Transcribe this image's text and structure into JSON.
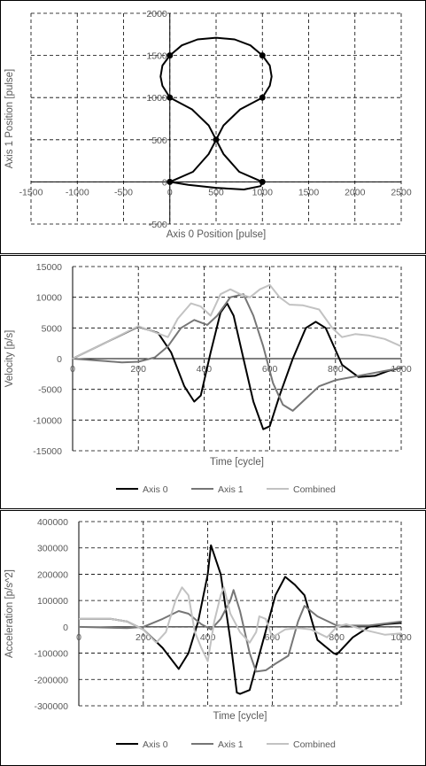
{
  "chart_data": [
    {
      "type": "scatter",
      "xlabel": "Axis 0 Position [pulse]",
      "ylabel": "Axis 1 Position [pulse]",
      "xlim": [
        -1500,
        2500
      ],
      "ylim": [
        -500,
        2000
      ],
      "xticks": [
        "-1500",
        "-1000",
        "-500",
        "0",
        "500",
        "1000",
        "1500",
        "2000",
        "2500"
      ],
      "yticks": [
        "-500",
        "0",
        "500",
        "1000",
        "1500",
        "2000"
      ],
      "grid": true,
      "legend": "none",
      "color": "#000000",
      "curve": [
        [
          0,
          0
        ],
        [
          250,
          120
        ],
        [
          420,
          330
        ],
        [
          500,
          500
        ],
        [
          580,
          670
        ],
        [
          760,
          860
        ],
        [
          1000,
          1000
        ],
        [
          1080,
          1140
        ],
        [
          1100,
          1250
        ],
        [
          1080,
          1380
        ],
        [
          1000,
          1500
        ],
        [
          870,
          1620
        ],
        [
          700,
          1690
        ],
        [
          500,
          1710
        ],
        [
          300,
          1690
        ],
        [
          130,
          1620
        ],
        [
          0,
          1500
        ],
        [
          -80,
          1380
        ],
        [
          -100,
          1250
        ],
        [
          -80,
          1140
        ],
        [
          0,
          1000
        ],
        [
          240,
          860
        ],
        [
          420,
          670
        ],
        [
          500,
          500
        ],
        [
          580,
          330
        ],
        [
          750,
          120
        ],
        [
          1000,
          0
        ],
        [
          980,
          -50
        ],
        [
          800,
          -90
        ],
        [
          500,
          -70
        ],
        [
          200,
          -35
        ],
        [
          0,
          0
        ]
      ],
      "markers": [
        [
          0,
          0
        ],
        [
          500,
          500
        ],
        [
          1000,
          1000
        ],
        [
          1000,
          1500
        ],
        [
          0,
          1500
        ],
        [
          0,
          1000
        ],
        [
          1000,
          0
        ]
      ]
    },
    {
      "type": "line",
      "xlabel": "Time [cycle]",
      "ylabel": "Velocity [p/s]",
      "xlim": [
        0,
        1000
      ],
      "ylim": [
        -15000,
        15000
      ],
      "xticks": [
        "0",
        "200",
        "400",
        "600",
        "800",
        "1000"
      ],
      "yticks": [
        "-15000",
        "-10000",
        "-5000",
        "0",
        "5000",
        "10000",
        "15000"
      ],
      "grid": true,
      "legend": "bottom",
      "series": [
        {
          "name": "Axis 0",
          "color": "#000000",
          "width": 2,
          "points": [
            [
              0,
              0
            ],
            [
              100,
              2600
            ],
            [
              200,
              5200
            ],
            [
              260,
              4200
            ],
            [
              300,
              1000
            ],
            [
              340,
              -4500
            ],
            [
              370,
              -7000
            ],
            [
              390,
              -6000
            ],
            [
              420,
              1000
            ],
            [
              450,
              7500
            ],
            [
              470,
              9000
            ],
            [
              490,
              7000
            ],
            [
              520,
              0
            ],
            [
              550,
              -7000
            ],
            [
              580,
              -11500
            ],
            [
              600,
              -11000
            ],
            [
              630,
              -6000
            ],
            [
              670,
              0
            ],
            [
              710,
              5000
            ],
            [
              740,
              6000
            ],
            [
              770,
              5000
            ],
            [
              820,
              -1000
            ],
            [
              870,
              -3000
            ],
            [
              920,
              -2800
            ],
            [
              960,
              -2000
            ],
            [
              1000,
              -1500
            ]
          ]
        },
        {
          "name": "Axis 1",
          "color": "#767676",
          "width": 2,
          "points": [
            [
              0,
              0
            ],
            [
              100,
              -400
            ],
            [
              150,
              -600
            ],
            [
              200,
              -500
            ],
            [
              250,
              200
            ],
            [
              290,
              2000
            ],
            [
              330,
              5000
            ],
            [
              370,
              6300
            ],
            [
              410,
              5500
            ],
            [
              440,
              7000
            ],
            [
              480,
              10000
            ],
            [
              520,
              10500
            ],
            [
              550,
              7000
            ],
            [
              580,
              2000
            ],
            [
              610,
              -4000
            ],
            [
              640,
              -7500
            ],
            [
              670,
              -8500
            ],
            [
              700,
              -7000
            ],
            [
              750,
              -4500
            ],
            [
              800,
              -3500
            ],
            [
              900,
              -2500
            ],
            [
              1000,
              -1500
            ]
          ]
        },
        {
          "name": "Combined",
          "color": "#c2c2c2",
          "width": 2,
          "points": [
            [
              0,
              0
            ],
            [
              100,
              2600
            ],
            [
              200,
              5300
            ],
            [
              250,
              4300
            ],
            [
              290,
              3500
            ],
            [
              320,
              6500
            ],
            [
              360,
              9000
            ],
            [
              390,
              8500
            ],
            [
              420,
              7000
            ],
            [
              450,
              10500
            ],
            [
              480,
              11300
            ],
            [
              510,
              10500
            ],
            [
              540,
              10000
            ],
            [
              570,
              11300
            ],
            [
              600,
              12000
            ],
            [
              630,
              10000
            ],
            [
              660,
              8800
            ],
            [
              700,
              8700
            ],
            [
              750,
              8000
            ],
            [
              790,
              5000
            ],
            [
              820,
              3500
            ],
            [
              860,
              4000
            ],
            [
              900,
              3800
            ],
            [
              950,
              3200
            ],
            [
              1000,
              2000
            ]
          ]
        }
      ]
    },
    {
      "type": "line",
      "xlabel": "Time [cycle]",
      "ylabel": "Acceleration [p/s^2]",
      "xlim": [
        0,
        1000
      ],
      "ylim": [
        -300000,
        400000
      ],
      "xticks": [
        "0",
        "200",
        "400",
        "600",
        "800",
        "1000"
      ],
      "yticks": [
        "-300000",
        "-200000",
        "-100000",
        "0",
        "100000",
        "200000",
        "300000",
        "400000"
      ],
      "grid": true,
      "legend": "bottom",
      "series": [
        {
          "name": "Axis 0",
          "color": "#000000",
          "width": 2,
          "points": [
            [
              0,
              30000
            ],
            [
              100,
              30000
            ],
            [
              150,
              20000
            ],
            [
              200,
              -10000
            ],
            [
              260,
              -80000
            ],
            [
              310,
              -160000
            ],
            [
              340,
              -100000
            ],
            [
              370,
              20000
            ],
            [
              400,
              200000
            ],
            [
              410,
              310000
            ],
            [
              440,
              200000
            ],
            [
              470,
              -50000
            ],
            [
              490,
              -250000
            ],
            [
              500,
              -255000
            ],
            [
              530,
              -240000
            ],
            [
              570,
              -60000
            ],
            [
              610,
              120000
            ],
            [
              640,
              190000
            ],
            [
              670,
              160000
            ],
            [
              700,
              120000
            ],
            [
              740,
              -50000
            ],
            [
              790,
              -100000
            ],
            [
              800,
              -105000
            ],
            [
              850,
              -40000
            ],
            [
              900,
              0
            ],
            [
              950,
              10000
            ],
            [
              1000,
              15000
            ]
          ]
        },
        {
          "name": "Axis 1",
          "color": "#767676",
          "width": 2,
          "points": [
            [
              0,
              0
            ],
            [
              150,
              -5000
            ],
            [
              200,
              0
            ],
            [
              260,
              30000
            ],
            [
              310,
              60000
            ],
            [
              340,
              50000
            ],
            [
              380,
              10000
            ],
            [
              410,
              -10000
            ],
            [
              440,
              30000
            ],
            [
              470,
              100000
            ],
            [
              480,
              140000
            ],
            [
              500,
              60000
            ],
            [
              530,
              -100000
            ],
            [
              550,
              -170000
            ],
            [
              580,
              -165000
            ],
            [
              610,
              -140000
            ],
            [
              650,
              -110000
            ],
            [
              680,
              20000
            ],
            [
              700,
              80000
            ],
            [
              740,
              40000
            ],
            [
              800,
              5000
            ],
            [
              900,
              5000
            ],
            [
              1000,
              20000
            ]
          ]
        },
        {
          "name": "Combined",
          "color": "#c2c2c2",
          "width": 2,
          "points": [
            [
              0,
              30000
            ],
            [
              100,
              30000
            ],
            [
              150,
              20000
            ],
            [
              200,
              -10000
            ],
            [
              240,
              -60000
            ],
            [
              270,
              -20000
            ],
            [
              300,
              100000
            ],
            [
              320,
              150000
            ],
            [
              340,
              120000
            ],
            [
              360,
              -20000
            ],
            [
              380,
              -80000
            ],
            [
              400,
              -130000
            ],
            [
              420,
              20000
            ],
            [
              440,
              120000
            ],
            [
              450,
              150000
            ],
            [
              470,
              50000
            ],
            [
              500,
              -20000
            ],
            [
              530,
              -60000
            ],
            [
              550,
              -20000
            ],
            [
              560,
              40000
            ],
            [
              580,
              30000
            ],
            [
              600,
              -40000
            ],
            [
              640,
              -10000
            ],
            [
              680,
              -5000
            ],
            [
              720,
              -10000
            ],
            [
              770,
              -40000
            ],
            [
              800,
              0
            ],
            [
              830,
              10000
            ],
            [
              880,
              -10000
            ],
            [
              950,
              -30000
            ],
            [
              1000,
              -25000
            ]
          ]
        }
      ]
    }
  ]
}
